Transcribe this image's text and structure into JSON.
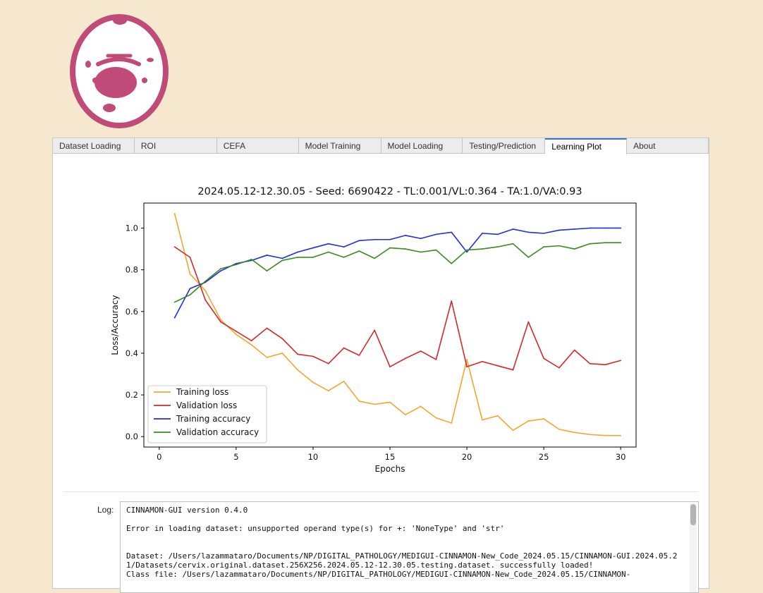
{
  "app": {
    "accent_color": "#c04a78"
  },
  "tabs": [
    {
      "label": "Dataset Loading",
      "width": 116
    },
    {
      "label": "ROI",
      "width": 117
    },
    {
      "label": "CEFA",
      "width": 116
    },
    {
      "label": "Model Training",
      "width": 117
    },
    {
      "label": "Model Loading",
      "width": 116
    },
    {
      "label": "Testing/Prediction",
      "width": 117
    },
    {
      "label": "Learning Plot",
      "width": 116,
      "active": true
    },
    {
      "label": "About",
      "width": 116
    }
  ],
  "chart_data": {
    "type": "line",
    "title": "2024.05.12-12.30.05 - Seed: 6690422 - TL:0.001/VL:0.364 - TA:1.0/VA:0.93",
    "xlabel": "Epochs",
    "ylabel": "Loss/Accuracy",
    "xlim": [
      -1,
      31
    ],
    "ylim": [
      -0.05,
      1.12
    ],
    "xticks": [
      0,
      5,
      10,
      15,
      20,
      25,
      30
    ],
    "yticks": [
      0.0,
      0.2,
      0.4,
      0.6,
      0.8,
      1.0
    ],
    "legend_position": "lower-left",
    "grid": false,
    "x": [
      1,
      2,
      3,
      4,
      5,
      6,
      7,
      8,
      9,
      10,
      11,
      12,
      13,
      14,
      15,
      16,
      17,
      18,
      19,
      20,
      21,
      22,
      23,
      24,
      25,
      26,
      27,
      28,
      29,
      30
    ],
    "series": [
      {
        "name": "Training loss",
        "color": "#f0a830",
        "values": [
          1.07,
          0.78,
          0.7,
          0.56,
          0.49,
          0.44,
          0.38,
          0.4,
          0.32,
          0.26,
          0.22,
          0.265,
          0.17,
          0.155,
          0.165,
          0.105,
          0.145,
          0.09,
          0.065,
          0.37,
          0.08,
          0.1,
          0.03,
          0.075,
          0.085,
          0.035,
          0.02,
          0.01,
          0.005,
          0.005
        ]
      },
      {
        "name": "Validation loss",
        "color": "#d62728",
        "values": [
          0.91,
          0.86,
          0.655,
          0.55,
          0.505,
          0.46,
          0.52,
          0.47,
          0.395,
          0.385,
          0.35,
          0.425,
          0.39,
          0.51,
          0.335,
          0.375,
          0.41,
          0.37,
          0.65,
          0.335,
          0.36,
          0.34,
          0.32,
          0.55,
          0.375,
          0.33,
          0.415,
          0.35,
          0.345,
          0.365
        ]
      },
      {
        "name": "Training accuracy",
        "color": "#1f2ee0",
        "values": [
          0.57,
          0.71,
          0.74,
          0.795,
          0.83,
          0.845,
          0.87,
          0.855,
          0.885,
          0.905,
          0.925,
          0.91,
          0.94,
          0.945,
          0.945,
          0.965,
          0.95,
          0.97,
          0.98,
          0.885,
          0.975,
          0.97,
          0.995,
          0.98,
          0.975,
          0.99,
          0.995,
          1.0,
          1.0,
          1.0
        ]
      },
      {
        "name": "Validation accuracy",
        "color": "#3a8a20",
        "values": [
          0.645,
          0.68,
          0.745,
          0.805,
          0.825,
          0.85,
          0.795,
          0.845,
          0.86,
          0.86,
          0.885,
          0.86,
          0.89,
          0.855,
          0.905,
          0.9,
          0.885,
          0.895,
          0.83,
          0.895,
          0.9,
          0.91,
          0.925,
          0.86,
          0.91,
          0.915,
          0.9,
          0.925,
          0.93,
          0.93
        ]
      }
    ]
  },
  "log": {
    "label": "Log:",
    "lines": [
      "CINNAMON-GUI version 0.4.0",
      "",
      "Error in loading dataset: unsupported operand type(s) for +: 'NoneType' and 'str'",
      "",
      "",
      "Dataset: /Users/lazammataro/Documents/NP/DIGITAL_PATHOLOGY/MEDIGUI-CINNAMON-New_Code_2024.05.15/CINNAMON-GUI.2024.05.21/Datasets/cervix.original.dataset.256X256.2024.05.12-12.30.05.testing.dataset. successfully loaded!",
      "Class file: /Users/lazammataro/Documents/NP/DIGITAL_PATHOLOGY/MEDIGUI-CINNAMON-New_Code_2024.05.15/CINNAMON-"
    ]
  }
}
